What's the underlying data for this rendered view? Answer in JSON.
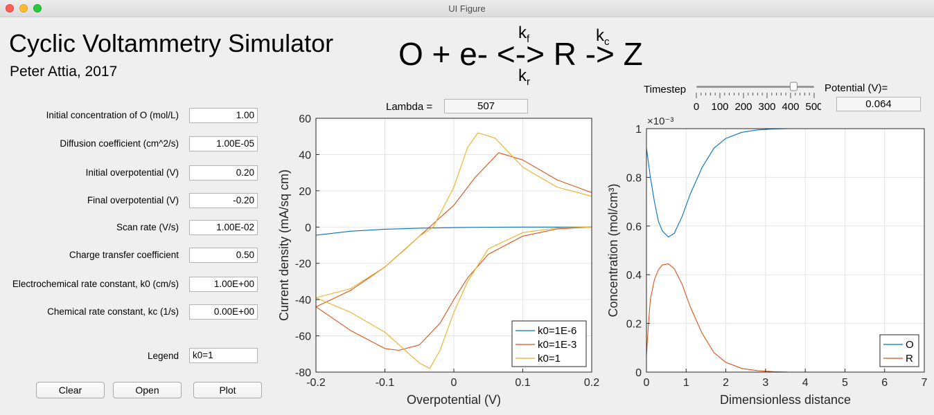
{
  "window": {
    "title": "UI Figure"
  },
  "header": {
    "title": "Cyclic Voltammetry Simulator",
    "author": "Peter Attia, 2017",
    "equation": "O + e- <-> R -> Z",
    "kf": "k",
    "kf_sub": "f",
    "kr": "k",
    "kr_sub": "r",
    "kc": "k",
    "kc_sub": "c"
  },
  "params": [
    {
      "label": "Initial concentration of O (mol/L)",
      "value": "1.00"
    },
    {
      "label": "Diffusion coefficient (cm^2/s)",
      "value": "1.00E-05"
    },
    {
      "label": "Initial overpotential (V)",
      "value": "0.20"
    },
    {
      "label": "Final overpotential (V)",
      "value": "-0.20"
    },
    {
      "label": "Scan rate (V/s)",
      "value": "1.00E-02"
    },
    {
      "label": "Charge transfer coefficient",
      "value": "0.50"
    },
    {
      "label": "Electrochemical rate constant, k0 (cm/s)",
      "value": "1.00E+00"
    },
    {
      "label": "Chemical rate constant, kc (1/s)",
      "value": "0.00E+00"
    }
  ],
  "legend_field": {
    "label": "Legend",
    "value": "k0=1"
  },
  "buttons": {
    "clear": "Clear",
    "open": "Open",
    "plot": "Plot"
  },
  "lambda": {
    "label": "Lambda =",
    "value": "507"
  },
  "timestep": {
    "label": "Timestep",
    "value": 413,
    "min": 0,
    "max": 500,
    "ticks": [
      "0",
      "100",
      "200",
      "300",
      "400",
      "500"
    ]
  },
  "potential": {
    "label": "Potential (V)=",
    "value": "0.064"
  },
  "colors": {
    "blue": "#0072bd",
    "red": "#d95319",
    "yellow": "#edb120"
  },
  "chart_data": [
    {
      "type": "line",
      "title": "",
      "xlabel": "Overpotential (V)",
      "ylabel": "Current density (mA/sq cm)",
      "xlim": [
        -0.2,
        0.2
      ],
      "ylim": [
        -80,
        60
      ],
      "xticks": [
        "-0.2",
        "-0.1",
        "0",
        "0.1",
        "0.2"
      ],
      "yticks": [
        "-80",
        "-60",
        "-40",
        "-20",
        "0",
        "20",
        "40",
        "60"
      ],
      "legend_position": "bottom-right",
      "series": [
        {
          "name": "k0=1E-6",
          "color": "#0072bd",
          "x": [
            -0.2,
            -0.15,
            -0.1,
            -0.05,
            0,
            0.05,
            0.1,
            0.15,
            0.2
          ],
          "y": [
            -4.5,
            -2.3,
            -1.2,
            -0.6,
            -0.3,
            -0.1,
            0,
            0,
            0
          ]
        },
        {
          "name": "k0=1E-3",
          "color": "#d95319",
          "x": [
            0.2,
            0.15,
            0.1,
            0.05,
            0.02,
            0,
            -0.02,
            -0.05,
            -0.08,
            -0.1,
            -0.15,
            -0.2,
            -0.15,
            -0.1,
            -0.07,
            -0.05,
            0,
            0.03,
            0.065,
            0.1,
            0.15,
            0.2
          ],
          "y": [
            0,
            -1,
            -5,
            -15,
            -28,
            -40,
            -53,
            -65,
            -68,
            -67,
            -57,
            -44,
            -35,
            -22,
            -12,
            -5,
            12,
            27,
            41,
            37,
            26,
            19
          ]
        },
        {
          "name": "k0=1",
          "color": "#edb120",
          "x": [
            0.2,
            0.15,
            0.1,
            0.05,
            0.02,
            0,
            -0.02,
            -0.035,
            -0.05,
            -0.1,
            -0.15,
            -0.2,
            -0.15,
            -0.1,
            -0.05,
            -0.03,
            0,
            0.02,
            0.035,
            0.06,
            0.1,
            0.15,
            0.2
          ],
          "y": [
            0,
            -0.5,
            -3,
            -12,
            -30,
            -47,
            -68,
            -78,
            -75,
            -58,
            -47,
            -39,
            -34,
            -22,
            -5,
            0,
            22,
            44,
            52,
            49,
            33,
            22,
            17
          ]
        }
      ]
    },
    {
      "type": "line",
      "title": "",
      "xlabel": "Dimensionless distance",
      "ylabel": "Concentration  (mol/cm³)",
      "exponent_label": "×10⁻³",
      "xlim": [
        0,
        7
      ],
      "ylim": [
        0,
        1
      ],
      "xticks": [
        "0",
        "1",
        "2",
        "3",
        "4",
        "5",
        "6",
        "7"
      ],
      "yticks": [
        "0",
        "0.2",
        "0.4",
        "0.6",
        "0.8",
        "1"
      ],
      "legend_position": "bottom-right",
      "series": [
        {
          "name": "O",
          "color": "#0072bd",
          "x": [
            0,
            0.1,
            0.2,
            0.3,
            0.4,
            0.55,
            0.7,
            0.9,
            1.1,
            1.4,
            1.7,
            2.0,
            2.4,
            2.8,
            3.2,
            3.6,
            4,
            5,
            6,
            6.6
          ],
          "y": [
            0.92,
            0.8,
            0.7,
            0.62,
            0.58,
            0.555,
            0.57,
            0.64,
            0.73,
            0.84,
            0.92,
            0.96,
            0.985,
            0.995,
            0.999,
            1,
            1,
            1,
            1,
            1
          ]
        },
        {
          "name": "R",
          "color": "#d95319",
          "x": [
            0,
            0.05,
            0.1,
            0.2,
            0.3,
            0.4,
            0.55,
            0.7,
            0.9,
            1.1,
            1.4,
            1.7,
            2.0,
            2.4,
            2.8,
            3.2,
            3.6,
            4,
            5,
            6,
            6.6
          ],
          "y": [
            0.07,
            0.2,
            0.3,
            0.38,
            0.42,
            0.44,
            0.445,
            0.425,
            0.36,
            0.27,
            0.16,
            0.08,
            0.04,
            0.015,
            0.006,
            0.002,
            0,
            0,
            0,
            0,
            0
          ]
        }
      ]
    }
  ]
}
